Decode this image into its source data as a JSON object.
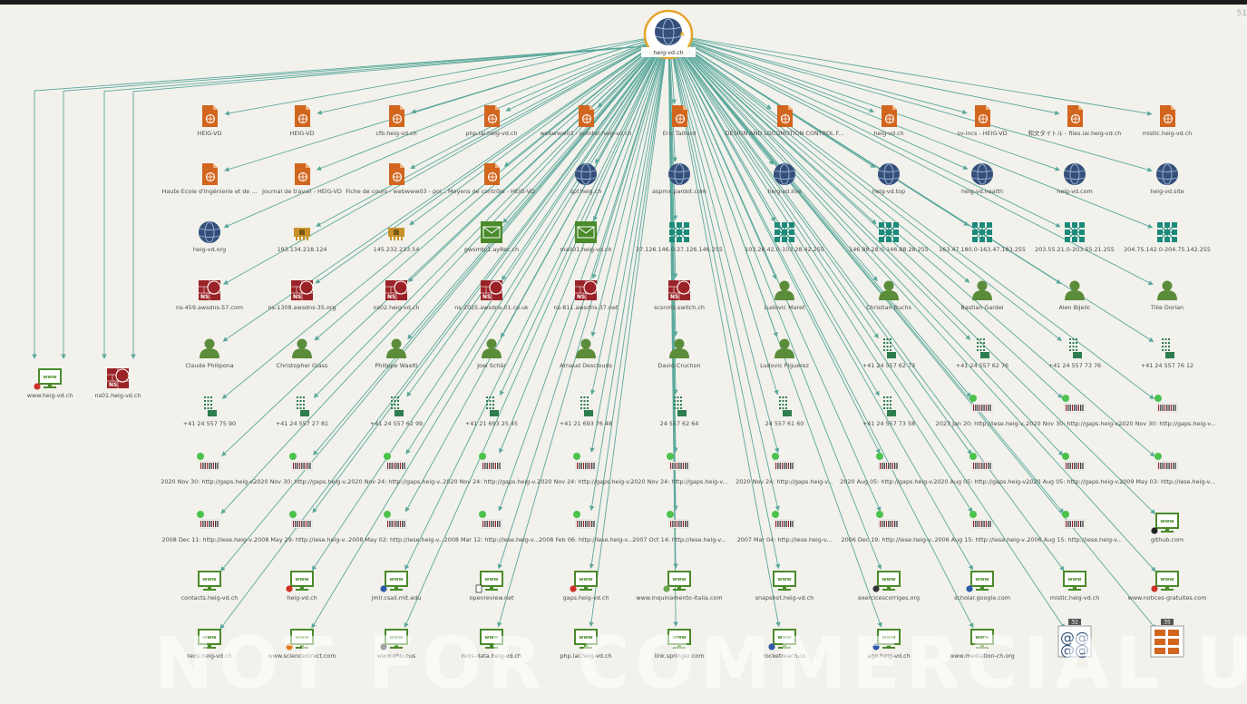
{
  "corner_text": "51",
  "watermark": "NOT FOR COMMERCIAL USE",
  "colors": {
    "edge": "#5aa89b",
    "doc": "#d2661f",
    "globe": "#34507a",
    "net": "#1d8a7a",
    "person": "#5b8c3a",
    "nic": "#c8922a",
    "ns": "#9b2226",
    "web": "#4a8a2a",
    "mx": "#4a8a2a",
    "phone": "#2e7d4f"
  },
  "root": {
    "label": "heig-vd.ch",
    "icon": "globe-icon"
  },
  "left_nodes": [
    {
      "label": "www.heig-vd.ch",
      "type": "web",
      "badge": "red"
    },
    {
      "label": "ns01.heig-vd.ch",
      "type": "ns"
    }
  ],
  "rows": [
    [
      {
        "label": "HEIG-VD",
        "type": "doc"
      },
      {
        "label": "HEIG-VD",
        "type": "doc"
      },
      {
        "label": "cfb.heig-vd.ch",
        "type": "doc"
      },
      {
        "label": "php.iai.heig-vd.ch",
        "type": "doc"
      },
      {
        "label": "webwww03 - pointer.heig-vd.ch",
        "type": "doc"
      },
      {
        "label": "Eric Taillard",
        "type": "doc"
      },
      {
        "label": "DESIGN AND LOCOMOTION CONTROL F...",
        "type": "doc"
      },
      {
        "label": "heig-vd.ch",
        "type": "doc"
      },
      {
        "label": "sv-incs - HEIG-VD",
        "type": "doc"
      },
      {
        "label": "和文タイトル - files.iai.heig-vd.ch",
        "type": "doc"
      },
      {
        "label": "mistic.heig-vd.ch",
        "type": "doc"
      }
    ],
    [
      {
        "label": "Haute Ecole d'Ingénierie et de ...",
        "type": "doc"
      },
      {
        "label": "Journal de travail - HEIG-VD",
        "type": "doc"
      },
      {
        "label": "Fiche de cours - webwww03 - poi...",
        "type": "doc"
      },
      {
        "label": "Moyens de contrôle - HEIG-VD",
        "type": "doc"
      },
      {
        "label": "spf.heig.ch",
        "type": "globe"
      },
      {
        "label": "aspmx.pardot.com",
        "type": "globe"
      },
      {
        "label": "heig-vd.live",
        "type": "globe"
      },
      {
        "label": "heig-vd.top",
        "type": "globe"
      },
      {
        "label": "heig-vd.health",
        "type": "globe"
      },
      {
        "label": "heig-vd.com",
        "type": "globe"
      },
      {
        "label": "heig-vd.site",
        "type": "globe"
      }
    ],
    [
      {
        "label": "heig-vd.org",
        "type": "globe"
      },
      {
        "label": "193.134.218.124",
        "type": "nic"
      },
      {
        "label": "145.232.233.54",
        "type": "nic"
      },
      {
        "label": "gwsmtp1.ay8ec.ch",
        "type": "mx"
      },
      {
        "label": "mail01.heig-vd.ch",
        "type": "mx"
      },
      {
        "label": "27.126.146.0-27.126.146.255",
        "type": "net"
      },
      {
        "label": "103.28.42.0-103.28.42.255",
        "type": "net"
      },
      {
        "label": "146.88.28.0-146.88.28.255",
        "type": "net"
      },
      {
        "label": "163.47.180.0-163.47.183.255",
        "type": "net"
      },
      {
        "label": "203.55.21.0-203.55.21.255",
        "type": "net"
      },
      {
        "label": "204.75.142.0-204.75.142.255",
        "type": "net"
      }
    ],
    [
      {
        "label": "ns-459.awsdns-57.com",
        "type": "ns"
      },
      {
        "label": "ns-1308.awsdns-35.org",
        "type": "ns"
      },
      {
        "label": "ns02.heig-vd.ch",
        "type": "ns"
      },
      {
        "label": "ns-2025.awsdns-01.co.uk",
        "type": "ns"
      },
      {
        "label": "ns-811.awsdns-37.net",
        "type": "ns"
      },
      {
        "label": "scsnms.switch.ch",
        "type": "ns"
      },
      {
        "label": "Ludovic Maret",
        "type": "person"
      },
      {
        "label": "Christian Buchs",
        "type": "person"
      },
      {
        "label": "Bastian Gardel",
        "type": "person"
      },
      {
        "label": "Alen Bijelic",
        "type": "person"
      },
      {
        "label": "Tille Dorian",
        "type": "person"
      }
    ],
    [
      {
        "label": "Claude Philipona",
        "type": "person"
      },
      {
        "label": "Christopher Glass",
        "type": "person"
      },
      {
        "label": "Philippe Waelti",
        "type": "person"
      },
      {
        "label": "Joel Schär",
        "type": "person"
      },
      {
        "label": "Arnaud Desclouds",
        "type": "person"
      },
      {
        "label": "David Cruchon",
        "type": "person"
      },
      {
        "label": "Ludovic Piguerez",
        "type": "person"
      },
      {
        "label": "+41 24 557 62 79",
        "type": "phone"
      },
      {
        "label": "+41 24 557 62 76",
        "type": "phone"
      },
      {
        "label": "+41 24 557 73 76",
        "type": "phone"
      },
      {
        "label": "+41 24 557 76 12",
        "type": "phone"
      }
    ],
    [
      {
        "label": "+41 24 557 75 90",
        "type": "phone"
      },
      {
        "label": "+41 24 557 27 81",
        "type": "phone"
      },
      {
        "label": "+41 24 557 62 99",
        "type": "phone"
      },
      {
        "label": "+41 21 693 25 45",
        "type": "phone"
      },
      {
        "label": "+41 21 693 76 48",
        "type": "phone"
      },
      {
        "label": "24 557 62 64",
        "type": "phone"
      },
      {
        "label": "24 557 61 60",
        "type": "phone"
      },
      {
        "label": "+41 24 557 73 58",
        "type": "phone"
      },
      {
        "label": "2023 Jan 20: http://iese.heig-v...",
        "type": "archive"
      },
      {
        "label": "2020 Nov 30: http://gaps.heig-v...",
        "type": "archive"
      },
      {
        "label": "2020 Nov 30: http://gaps.heig-v...",
        "type": "archive"
      }
    ],
    [
      {
        "label": "2020 Nov 30: http://gaps.heig-v...",
        "type": "archive"
      },
      {
        "label": "2020 Nov 30: http://gaps.heig-v...",
        "type": "archive"
      },
      {
        "label": "2020 Nov 24: http://gaps.heig-v...",
        "type": "archive"
      },
      {
        "label": "2020 Nov 24: http://gaps.heig-v...",
        "type": "archive"
      },
      {
        "label": "2020 Nov 24: http://gaps.heig-v...",
        "type": "archive"
      },
      {
        "label": "2020 Nov 24: http://gaps.heig-v...",
        "type": "archive"
      },
      {
        "label": "2020 Nov 24: http://gaps.heig-v...",
        "type": "archive"
      },
      {
        "label": "2020 Aug 05: http://gaps.heig-v...",
        "type": "archive"
      },
      {
        "label": "2020 Aug 05: http://gaps.heig-v...",
        "type": "archive"
      },
      {
        "label": "2020 Aug 05: http://gaps.heig-v...",
        "type": "archive"
      },
      {
        "label": "2009 May 03: http://iese.heig-v...",
        "type": "archive"
      }
    ],
    [
      {
        "label": "2008 Dec 11: http://iese.heig-v...",
        "type": "archive"
      },
      {
        "label": "2008 May 29: http://iese.heig-v...",
        "type": "archive"
      },
      {
        "label": "2008 May 02: http://iese.heig-v...",
        "type": "archive"
      },
      {
        "label": "2008 Mar 12: http://iese.heig-v...",
        "type": "archive"
      },
      {
        "label": "2008 Feb 06: http://iese.heig-v...",
        "type": "archive"
      },
      {
        "label": "2007 Oct 14: http://iese.heig-v...",
        "type": "archive"
      },
      {
        "label": "2007 Mar 04: http://iese.heig-v...",
        "type": "archive"
      },
      {
        "label": "2006 Dec 19: http://iese.heig-v...",
        "type": "archive"
      },
      {
        "label": "2006 Aug 15: http://iese.heig-v...",
        "type": "archive"
      },
      {
        "label": "2006 Aug 15: http://iese.heig-v...",
        "type": "archive"
      },
      {
        "label": "github.com",
        "type": "web",
        "badge": "github"
      }
    ],
    [
      {
        "label": "contacts.heig-vd.ch",
        "type": "web"
      },
      {
        "label": "heig-vd.ch",
        "type": "web",
        "badge": "red"
      },
      {
        "label": "jmlr.csail.mit.edu",
        "type": "web",
        "badge": "blue"
      },
      {
        "label": "openreview.net",
        "type": "web",
        "badge": "doc"
      },
      {
        "label": "gaps.heig-vd.ch",
        "type": "web",
        "badge": "red"
      },
      {
        "label": "www.inquinamento-italia.com",
        "type": "web",
        "badge": "green"
      },
      {
        "label": "snapshot.heig-vd.ch",
        "type": "web"
      },
      {
        "label": "exercicescorriges.org",
        "type": "web",
        "badge": "dark"
      },
      {
        "label": "scholar.google.com",
        "type": "web",
        "badge": "blue"
      },
      {
        "label": "mistic.heig-vd.ch",
        "type": "web"
      },
      {
        "label": "www.notices-gratuites.com",
        "type": "web",
        "badge": "red"
      }
    ],
    [
      {
        "label": "reds.heig-vd.ch",
        "type": "web"
      },
      {
        "label": "www.sciencedirect.com",
        "type": "web",
        "badge": "orange"
      },
      {
        "label": "www.ehu.eus",
        "type": "web",
        "badge": "dark"
      },
      {
        "label": "reds-data.heig-vd.ch",
        "type": "web"
      },
      {
        "label": "php.iai.heig-vd.ch",
        "type": "web"
      },
      {
        "label": "link.springer.com",
        "type": "web"
      },
      {
        "label": "rocketreach.co",
        "type": "web",
        "badge": "blue"
      },
      {
        "label": "age.heig-vd.ch",
        "type": "web",
        "badge": "blue"
      },
      {
        "label": "www.mediation-ch.org",
        "type": "web"
      },
      {
        "label": "",
        "type": "email-group",
        "count": "32"
      },
      {
        "label": "",
        "type": "archive-group",
        "count": "35"
      }
    ]
  ]
}
